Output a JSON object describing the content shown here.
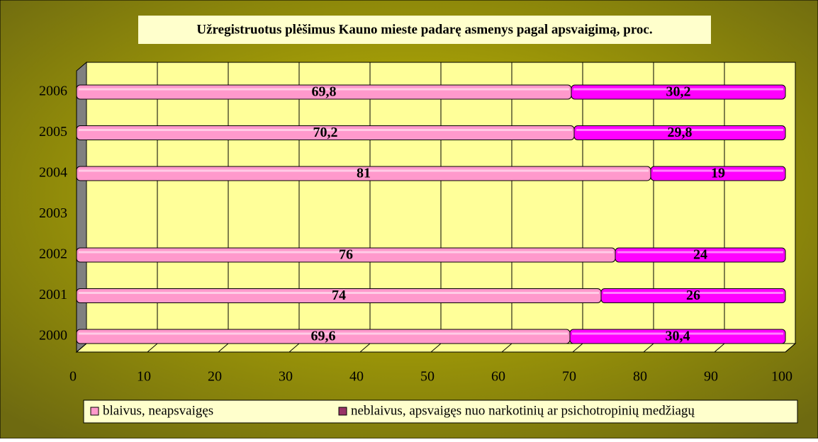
{
  "chart_data": {
    "type": "stacked_barh",
    "title": "Užregistruotus plėšimus Kauno mieste padarę asmenys pagal apsvaigimą, proc.",
    "categories": [
      "2000",
      "2001",
      "2002",
      "2003",
      "2004",
      "2005",
      "2006"
    ],
    "series": [
      {
        "name": "blaivus, neapsvaigęs",
        "color": "#ff99cc",
        "legend_color": "#ff99cc",
        "values": [
          69.6,
          74,
          76,
          null,
          81,
          70.2,
          69.8
        ],
        "value_labels": [
          "69,6",
          "74",
          "76",
          null,
          "81",
          "70,2",
          "69,8"
        ]
      },
      {
        "name": "neblaivus, apsvaigęs nuo narkotinių ar psichotropinių medžiagų",
        "color": "#ff00ff",
        "legend_color": "#993366",
        "values": [
          30.4,
          26,
          24,
          null,
          19,
          29.8,
          30.2
        ],
        "value_labels": [
          "30,4",
          "26",
          "24",
          null,
          "19",
          "29,8",
          "30,2"
        ]
      }
    ],
    "xlim": [
      0,
      100
    ],
    "xticks": [
      0,
      10,
      20,
      30,
      40,
      50,
      60,
      70,
      80,
      90,
      100
    ],
    "grid": true
  }
}
